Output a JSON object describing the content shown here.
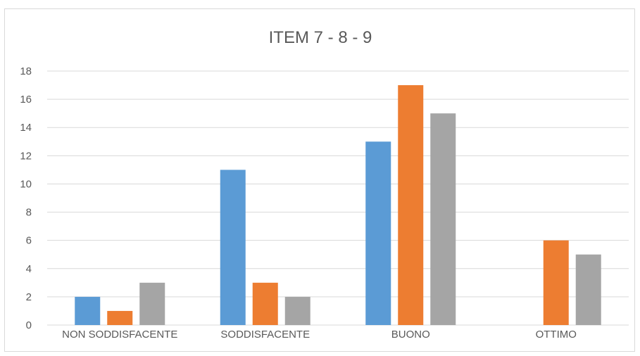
{
  "chart_data": {
    "type": "bar",
    "title": "ITEM 7 - 8 - 9",
    "xlabel": "",
    "ylabel": "",
    "categories": [
      "NON SODDISFACENTE",
      "SODDISFACENTE",
      "BUONO",
      "OTTIMO"
    ],
    "series": [
      {
        "color": "#5b9bd5",
        "values": [
          2,
          11,
          13,
          0
        ]
      },
      {
        "color": "#ed7d31",
        "values": [
          1,
          3,
          17,
          6
        ]
      },
      {
        "color": "#a5a5a5",
        "values": [
          3,
          2,
          15,
          5
        ]
      }
    ],
    "ylim": [
      0,
      18
    ],
    "yticks": [
      0,
      2,
      4,
      6,
      8,
      10,
      12,
      14,
      16,
      18
    ],
    "grid": true,
    "legend": "none"
  }
}
